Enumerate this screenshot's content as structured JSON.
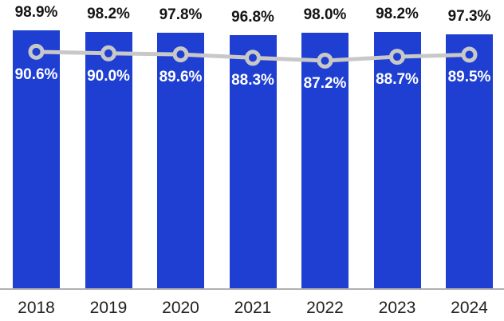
{
  "chart_data": {
    "type": "combo",
    "categories": [
      "2018",
      "2019",
      "2020",
      "2021",
      "2022",
      "2023",
      "2024"
    ],
    "series": [
      {
        "name": "bar-series",
        "type": "bar",
        "values": [
          98.9,
          98.2,
          97.8,
          96.8,
          98.0,
          98.2,
          97.3
        ],
        "labels": [
          "98.9%",
          "98.2%",
          "97.8%",
          "96.8%",
          "98.0%",
          "98.2%",
          "97.3%"
        ],
        "color": "#1E3FD1",
        "label_color": "#141414",
        "label_position": "above-bar"
      },
      {
        "name": "line-series",
        "type": "line",
        "values": [
          90.6,
          90.0,
          89.6,
          88.3,
          87.2,
          88.7,
          89.5
        ],
        "labels": [
          "90.6%",
          "90.0%",
          "89.6%",
          "88.3%",
          "87.2%",
          "88.7%",
          "89.5%"
        ],
        "color": "#C8C8C8",
        "marker": "open-circle",
        "label_color": "#FFFFFF",
        "label_position": "below-marker"
      }
    ],
    "title": "",
    "xlabel": "",
    "ylabel": "",
    "ylim": [
      0,
      100
    ],
    "grid": false,
    "legend": "none",
    "y_axis_visible": false,
    "axis_line_color": "#B0B0B0",
    "x_tick_color": "#212121",
    "background": "#FFFFFF"
  }
}
